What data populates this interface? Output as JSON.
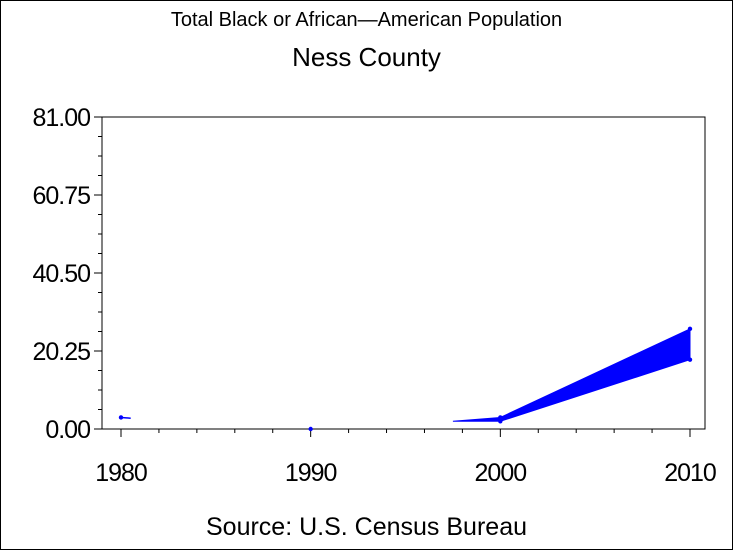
{
  "chart_data": {
    "type": "line",
    "title": "Total Black or African—American Population",
    "subtitle": "Ness County",
    "footnote": "Source: U.S. Census Bureau",
    "xlabel": "",
    "ylabel": "",
    "x_ticks": [
      "1980",
      "1990",
      "2000",
      "2010"
    ],
    "y_ticks": [
      "0.00",
      "20.25",
      "40.50",
      "60.75",
      "81.00"
    ],
    "xlim": [
      1980,
      2010
    ],
    "ylim": [
      0,
      81
    ],
    "grid": false,
    "legend": "none",
    "series_color": "#0000ff",
    "band": {
      "x": [
        1997.5,
        2000,
        2010
      ],
      "lower": [
        2.0,
        2.0,
        18.0
      ],
      "upper": [
        2.0,
        3.0,
        26.0
      ]
    },
    "points": [
      {
        "x": 1980,
        "y": 3
      },
      {
        "x": 1990,
        "y": 0
      },
      {
        "x": 2000,
        "y": 2
      },
      {
        "x": 2000,
        "y": 3
      },
      {
        "x": 2010,
        "y": 18
      },
      {
        "x": 2010,
        "y": 26
      }
    ],
    "segments": [
      {
        "x": [
          1980,
          1980.3
        ],
        "y": [
          3,
          2.8
        ]
      }
    ]
  }
}
